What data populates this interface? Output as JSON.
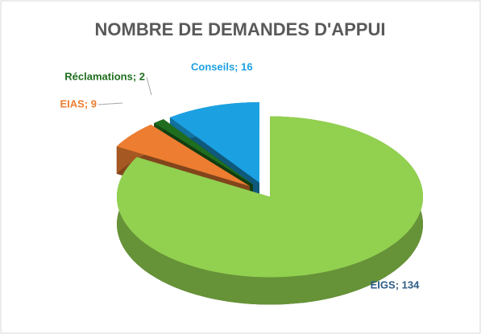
{
  "chart_data": {
    "type": "pie3d",
    "title": "NOMBRE DE DEMANDES D'APPUI",
    "categories": [
      "EIGS",
      "EIAS",
      "Réclamations",
      "Conseils"
    ],
    "values": [
      134,
      9,
      2,
      16
    ],
    "value_labels": [
      "EIGS; 134",
      "EIAS; 9",
      "Réclamations; 2",
      "Conseils; 16"
    ],
    "colors": [
      "#92d050",
      "#ed7d31",
      "#1f6e1f",
      "#1ba1e2"
    ]
  }
}
